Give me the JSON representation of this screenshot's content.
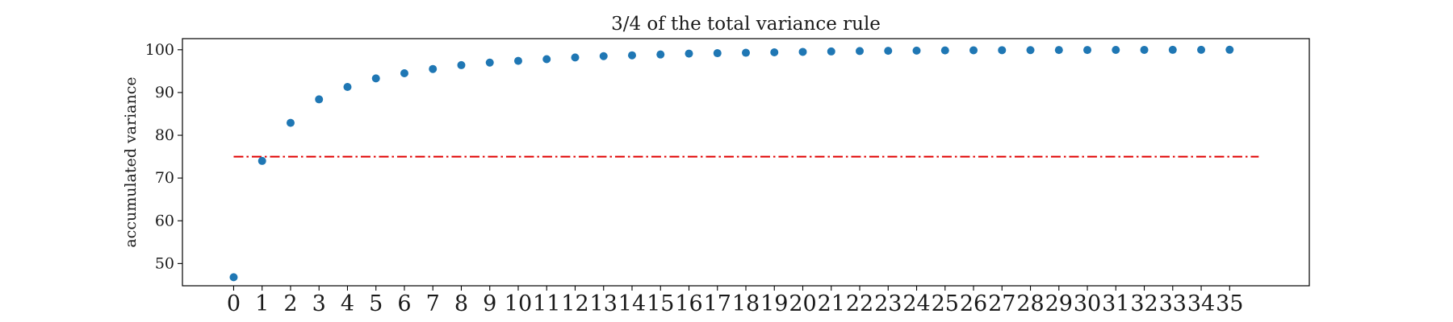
{
  "chart_data": {
    "type": "scatter",
    "title": "3/4 of the total variance rule",
    "xlabel": "",
    "ylabel": "accumulated variance",
    "x": [
      0,
      1,
      2,
      3,
      4,
      5,
      6,
      7,
      8,
      9,
      10,
      11,
      12,
      13,
      14,
      15,
      16,
      17,
      18,
      19,
      20,
      21,
      22,
      23,
      24,
      25,
      26,
      27,
      28,
      29,
      30,
      31,
      32,
      33,
      34,
      35
    ],
    "series": [
      {
        "values": [
          46.8,
          74.0,
          82.9,
          88.4,
          91.3,
          93.3,
          94.5,
          95.5,
          96.4,
          97.0,
          97.4,
          97.8,
          98.2,
          98.5,
          98.7,
          98.9,
          99.1,
          99.2,
          99.3,
          99.4,
          99.5,
          99.6,
          99.7,
          99.75,
          99.8,
          99.85,
          99.88,
          99.9,
          99.92,
          99.94,
          99.95,
          99.96,
          99.97,
          99.98,
          99.99,
          100.0
        ],
        "color": "#1f77b4"
      }
    ],
    "reference_line": {
      "y": 75,
      "x_range": [
        0,
        35
      ],
      "style": "dash-dot",
      "color": "#e00000"
    },
    "xticks": [
      "0",
      "1",
      "2",
      "3",
      "4",
      "5",
      "6",
      "7",
      "8",
      "9",
      "10",
      "11",
      "12",
      "13",
      "14",
      "15",
      "16",
      "17",
      "18",
      "19",
      "20",
      "21",
      "22",
      "23",
      "24",
      "25",
      "26",
      "27",
      "28",
      "29",
      "30",
      "31",
      "32",
      "33",
      "34",
      "35"
    ],
    "yticks": [
      "50",
      "60",
      "70",
      "80",
      "90",
      "100"
    ],
    "ylim": [
      44.8,
      102.6
    ],
    "xlim": [
      -1.8,
      37.8
    ],
    "grid": false,
    "legend": "none"
  }
}
